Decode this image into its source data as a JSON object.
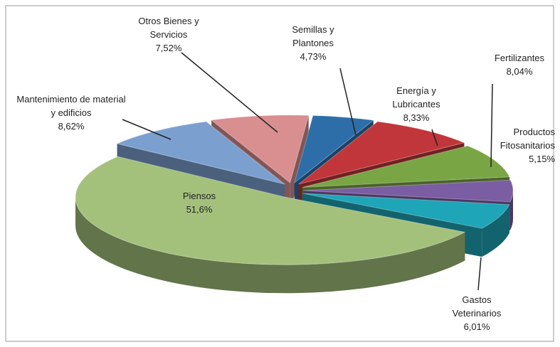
{
  "chart_data": {
    "type": "pie3d",
    "categories": [
      "Otros Bienes y Servicios",
      "Semillas y Plantones",
      "Energía y Lubricantes",
      "Fertilizantes",
      "Productos Fitosanitarios",
      "Gastos Veterinarios",
      "Piensos",
      "Mantenimiento de material y edificios"
    ],
    "values": [
      7.52,
      4.73,
      8.33,
      8.04,
      5.15,
      6.01,
      51.6,
      8.62
    ],
    "value_labels": [
      "7,52%",
      "4,73%",
      "8,33%",
      "8,04%",
      "5,15%",
      "6,01%",
      "51,6%",
      "8,62%"
    ],
    "colors": [
      "#d98e90",
      "#2d6ea8",
      "#c0363a",
      "#7aa544",
      "#7b5da3",
      "#1ea5b8",
      "#a4c17c",
      "#7ba0cf"
    ]
  }
}
